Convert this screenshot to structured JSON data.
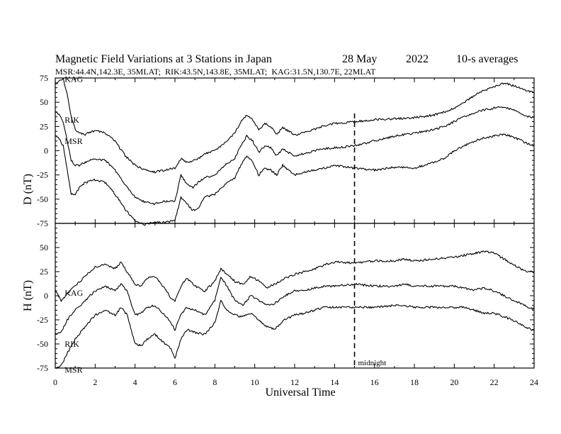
{
  "chart_data": {
    "type": "line",
    "title_parts": [
      "Magnetic Field Variations at 3 Stations in Japan",
      "28 May",
      "2022",
      "10-s averages"
    ],
    "subtitle": "MSR:44.4N,142.3E, 35MLAT;  RIK:43.5N,143.8E, 35MLAT;  KAG:31.5N,130.7E, 22MLAT",
    "xlabel": "Universal Time",
    "xlim": [
      0,
      24
    ],
    "xticks": [
      "0",
      "2",
      "4",
      "6",
      "8",
      "10",
      "12",
      "14",
      "16",
      "18",
      "20",
      "22",
      "24"
    ],
    "annotation": {
      "text": "midnight",
      "x": 15
    },
    "panels": [
      {
        "ylabel": "D (nT)",
        "ylim": [
          -75,
          75
        ],
        "yticks": [
          "75",
          "50",
          "25",
          "0",
          "-25",
          "-50",
          "-75"
        ],
        "series": [
          {
            "name": "KAG",
            "label_x": 0.4,
            "label_y": 74,
            "x": [
              0,
              0.2,
              0.4,
              0.6,
              0.8,
              1.0,
              1.2,
              1.5,
              2,
              2.5,
              3,
              3.5,
              4,
              4.5,
              5,
              5.5,
              6,
              6.3,
              6.6,
              6.9,
              7.2,
              7.5,
              8,
              8.5,
              9,
              9.3,
              9.6,
              9.9,
              10.2,
              10.5,
              10.8,
              11.1,
              11.4,
              11.7,
              12,
              12.5,
              13,
              13.5,
              14,
              15,
              16,
              17,
              18,
              19,
              19.5,
              20,
              20.5,
              21,
              21.5,
              22,
              22.5,
              22.8,
              23.2,
              23.6,
              24
            ],
            "y": [
              68,
              72,
              74,
              58,
              35,
              22,
              18,
              17,
              21,
              18,
              10,
              -5,
              -15,
              -20,
              -22,
              -20,
              -18,
              -8,
              -12,
              -10,
              -8,
              -3,
              0,
              8,
              18,
              30,
              37,
              32,
              22,
              28,
              25,
              17,
              24,
              20,
              16,
              19,
              22,
              26,
              28,
              30,
              32,
              33,
              34,
              37,
              40,
              44,
              50,
              57,
              62,
              66,
              70,
              68,
              66,
              62,
              60
            ]
          },
          {
            "name": "RIK",
            "label_x": 0.4,
            "label_y": 32,
            "x": [
              0,
              0.2,
              0.4,
              0.6,
              0.8,
              1.0,
              1.2,
              1.5,
              2,
              2.5,
              3,
              3.5,
              4,
              4.5,
              5,
              5.5,
              6,
              6.3,
              6.6,
              6.9,
              7.2,
              7.5,
              8,
              8.5,
              9,
              9.3,
              9.6,
              9.9,
              10.2,
              10.5,
              10.8,
              11.1,
              11.4,
              11.7,
              12,
              12.5,
              13,
              13.5,
              14,
              15,
              16,
              17,
              18,
              19,
              19.5,
              20,
              20.5,
              21,
              21.5,
              22,
              22.5,
              22.8,
              23.2,
              23.6,
              24
            ],
            "y": [
              40,
              38,
              30,
              10,
              -10,
              -15,
              -15,
              -12,
              -8,
              -10,
              -20,
              -35,
              -48,
              -53,
              -55,
              -52,
              -52,
              -25,
              -35,
              -38,
              -32,
              -28,
              -25,
              -15,
              -8,
              5,
              15,
              10,
              -2,
              5,
              3,
              -5,
              2,
              -2,
              -5,
              -3,
              0,
              2,
              3,
              5,
              10,
              15,
              18,
              22,
              25,
              30,
              35,
              39,
              42,
              44,
              45,
              43,
              40,
              36,
              34
            ]
          },
          {
            "name": "MSR",
            "label_x": 0.4,
            "label_y": 10,
            "x": [
              0,
              0.2,
              0.4,
              0.6,
              0.8,
              1.0,
              1.2,
              1.5,
              2,
              2.5,
              3,
              3.5,
              4,
              4.5,
              5,
              5.5,
              6,
              6.3,
              6.6,
              6.9,
              7.2,
              7.5,
              8,
              8.5,
              9,
              9.3,
              9.6,
              9.9,
              10.2,
              10.5,
              10.8,
              11.1,
              11.4,
              11.7,
              12,
              12.5,
              13,
              13.5,
              14,
              15,
              16,
              17,
              18,
              19,
              19.5,
              20,
              20.5,
              21,
              21.5,
              22,
              22.5,
              22.8,
              23.2,
              23.6,
              24
            ],
            "y": [
              15,
              12,
              5,
              -20,
              -45,
              -45,
              -38,
              -33,
              -30,
              -33,
              -45,
              -60,
              -73,
              -76,
              -74,
              -74,
              -72,
              -48,
              -55,
              -62,
              -58,
              -48,
              -45,
              -35,
              -28,
              -15,
              -5,
              -12,
              -25,
              -18,
              -20,
              -25,
              -15,
              -20,
              -25,
              -22,
              -20,
              -18,
              -15,
              -18,
              -20,
              -17,
              -18,
              -12,
              -8,
              0,
              5,
              10,
              13,
              15,
              17,
              15,
              12,
              8,
              5
            ]
          }
        ]
      },
      {
        "ylabel": "H (nT)",
        "ylim": [
          -75,
          75
        ],
        "yticks": [
          "75",
          "50",
          "25",
          "0",
          "-25",
          "-50",
          "-75"
        ],
        "series": [
          {
            "name": "KAG",
            "label_x": 0.4,
            "label_y": 3,
            "x": [
              0,
              0.3,
              0.6,
              1.0,
              1.5,
              2,
              2.5,
              3,
              3.3,
              3.6,
              4,
              4.3,
              4.6,
              5,
              5.4,
              5.8,
              6,
              6.3,
              6.6,
              7,
              7.5,
              8,
              8.3,
              8.6,
              9,
              9.4,
              9.8,
              10.2,
              10.6,
              11,
              11.5,
              12,
              12.5,
              13,
              13.5,
              14,
              15,
              16,
              17,
              17.5,
              18,
              19,
              20,
              20.5,
              21,
              21.5,
              22,
              22.5,
              23,
              23.5,
              24
            ],
            "y": [
              5,
              -5,
              2,
              10,
              20,
              30,
              32,
              28,
              35,
              25,
              12,
              10,
              18,
              20,
              10,
              -2,
              -5,
              10,
              18,
              10,
              5,
              15,
              28,
              22,
              15,
              12,
              20,
              15,
              8,
              12,
              18,
              22,
              25,
              28,
              32,
              35,
              34,
              36,
              36,
              38,
              36,
              38,
              40,
              42,
              44,
              46,
              44,
              38,
              32,
              26,
              24
            ]
          },
          {
            "name": "RIK",
            "label_x": 0.4,
            "label_y": -50,
            "x": [
              0,
              0.3,
              0.6,
              1.0,
              1.5,
              2,
              2.5,
              3,
              3.3,
              3.6,
              4,
              4.3,
              4.6,
              5,
              5.4,
              5.8,
              6,
              6.3,
              6.6,
              7,
              7.5,
              8,
              8.3,
              8.6,
              9,
              9.4,
              9.8,
              10.2,
              10.6,
              11,
              11.5,
              12,
              12.5,
              13,
              13.5,
              14,
              15,
              16,
              17,
              17.5,
              18,
              19,
              20,
              20.5,
              21,
              21.5,
              22,
              22.5,
              23,
              23.5,
              24
            ],
            "y": [
              -40,
              -38,
              -25,
              -15,
              -5,
              5,
              10,
              5,
              12,
              5,
              -20,
              -18,
              -12,
              -10,
              -18,
              -28,
              -35,
              -20,
              -12,
              -15,
              -20,
              -5,
              20,
              10,
              -5,
              -10,
              0,
              -5,
              -10,
              -8,
              0,
              5,
              5,
              8,
              10,
              10,
              12,
              10,
              10,
              12,
              10,
              10,
              10,
              8,
              6,
              8,
              5,
              0,
              -5,
              -10,
              -14
            ]
          },
          {
            "name": "MSR",
            "label_x": 0.4,
            "label_y": -77,
            "x": [
              0,
              0.3,
              0.6,
              1.0,
              1.5,
              2,
              2.5,
              3,
              3.3,
              3.6,
              4,
              4.3,
              4.6,
              5,
              5.4,
              5.8,
              6,
              6.3,
              6.6,
              7,
              7.5,
              8,
              8.3,
              8.6,
              9,
              9.4,
              9.8,
              10.2,
              10.6,
              11,
              11.5,
              12,
              12.5,
              13,
              13.5,
              14,
              15,
              16,
              17,
              17.5,
              18,
              19,
              20,
              20.5,
              21,
              21.5,
              22,
              22.5,
              23,
              23.5,
              24
            ],
            "y": [
              -75,
              -72,
              -60,
              -45,
              -32,
              -20,
              -15,
              -20,
              -12,
              -20,
              -50,
              -52,
              -45,
              -40,
              -48,
              -55,
              -65,
              -45,
              -35,
              -38,
              -40,
              -28,
              -5,
              -15,
              -20,
              -22,
              -18,
              -25,
              -32,
              -35,
              -25,
              -20,
              -18,
              -15,
              -12,
              -12,
              -12,
              -12,
              -10,
              -10,
              -12,
              -12,
              -12,
              -12,
              -15,
              -18,
              -18,
              -22,
              -26,
              -32,
              -36
            ]
          }
        ]
      }
    ]
  }
}
